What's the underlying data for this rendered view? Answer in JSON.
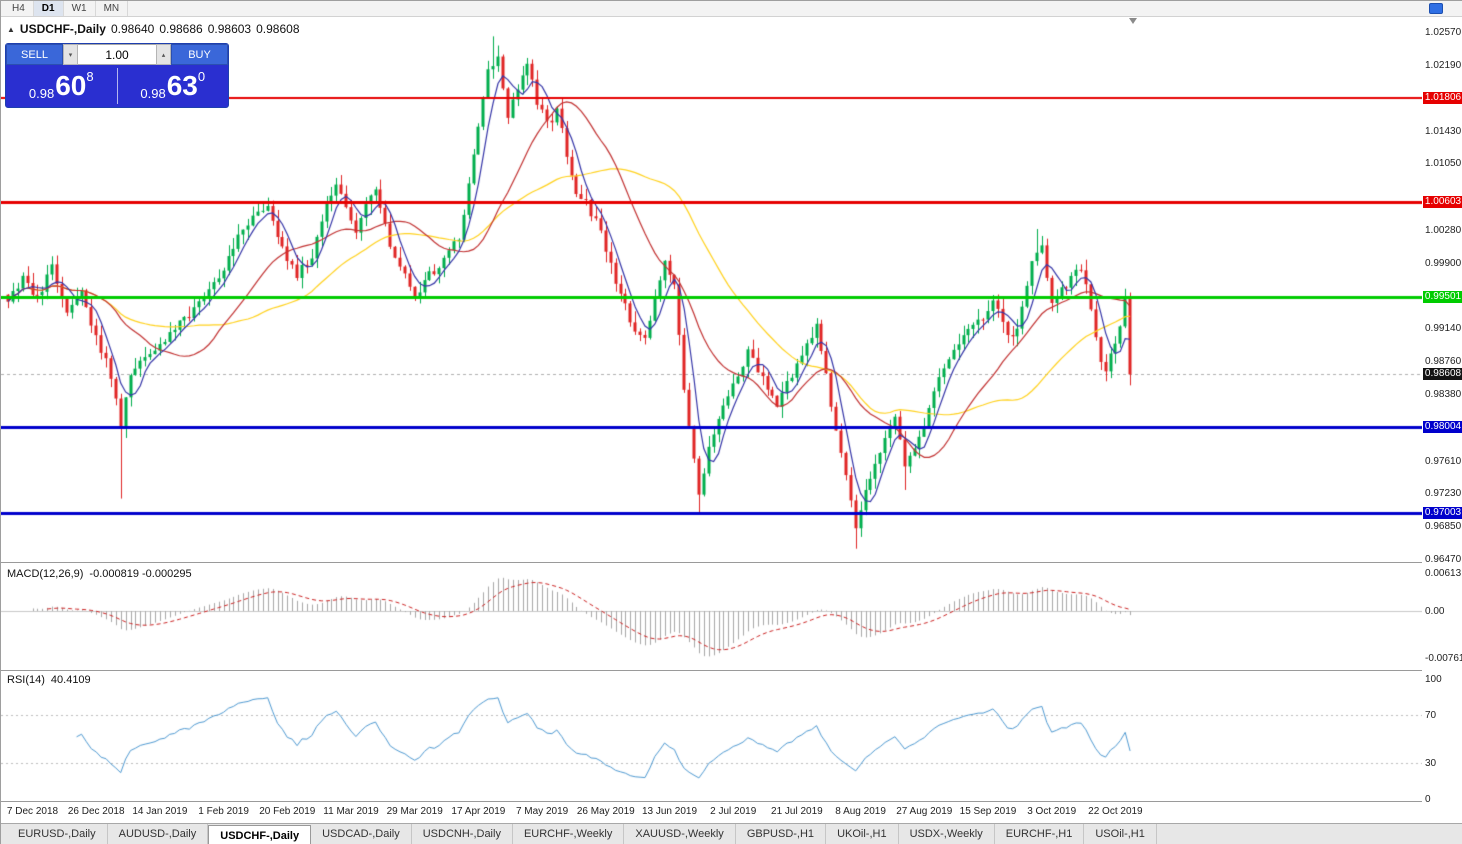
{
  "toolbar": {
    "timeframes": [
      {
        "label": "H4",
        "active": false
      },
      {
        "label": "D1",
        "active": true
      },
      {
        "label": "W1",
        "active": false
      },
      {
        "label": "MN",
        "active": false
      }
    ]
  },
  "chart": {
    "title_symbol": "USDCHF-,Daily",
    "ohlc": {
      "open": "0.98640",
      "high": "0.98686",
      "low": "0.98603",
      "close": "0.98608"
    },
    "trade_panel": {
      "sell_label": "SELL",
      "buy_label": "BUY",
      "volume": "1.00",
      "sell_base": "0.98",
      "sell_pips": "60",
      "sell_sup": "8",
      "buy_base": "0.98",
      "buy_pips": "63",
      "buy_sup": "0"
    }
  },
  "chart_data": {
    "type": "candlestick",
    "symbol": "USDCHF",
    "timeframe": "Daily",
    "y_range": {
      "top": 1.02744,
      "bottom": 0.96436
    },
    "num_candles": 230,
    "price_axis_ticks": [
      "1.02570",
      "1.02190",
      "1.01430",
      "1.01050",
      "1.00280",
      "0.99900",
      "0.99140",
      "0.98760",
      "0.98380",
      "0.97610",
      "0.97230",
      "0.96850",
      "0.96470"
    ],
    "hlines": [
      {
        "price": 1.01806,
        "label": "1.01806",
        "color": "#e60000",
        "width": 2
      },
      {
        "price": 1.00603,
        "label": "1.00603",
        "color": "#e60000",
        "width": 3
      },
      {
        "price": 0.99501,
        "label": "0.99501",
        "color": "#00cc00",
        "width": 3
      },
      {
        "price": 0.98004,
        "label": "0.98004",
        "color": "#0000cc",
        "width": 3
      },
      {
        "price": 0.97003,
        "label": "0.97003",
        "color": "#0000cc",
        "width": 3
      }
    ],
    "current_price": {
      "label": "0.98608",
      "value": 0.98608,
      "badge_color": "#141414"
    },
    "x_labels": [
      {
        "label": "7 Dec 2018",
        "index": 5
      },
      {
        "label": "26 Dec 2018",
        "index": 18
      },
      {
        "label": "14 Jan 2019",
        "index": 31
      },
      {
        "label": "1 Feb 2019",
        "index": 44
      },
      {
        "label": "20 Feb 2019",
        "index": 57
      },
      {
        "label": "11 Mar 2019",
        "index": 70
      },
      {
        "label": "29 Mar 2019",
        "index": 83
      },
      {
        "label": "17 Apr 2019",
        "index": 96
      },
      {
        "label": "7 May 2019",
        "index": 109
      },
      {
        "label": "26 May 2019",
        "index": 122
      },
      {
        "label": "13 Jun 2019",
        "index": 135
      },
      {
        "label": "2 Jul 2019",
        "index": 148
      },
      {
        "label": "21 Jul 2019",
        "index": 161
      },
      {
        "label": "8 Aug 2019",
        "index": 174
      },
      {
        "label": "27 Aug 2019",
        "index": 187
      },
      {
        "label": "15 Sep 2019",
        "index": 200
      },
      {
        "label": "3 Oct 2019",
        "index": 213
      },
      {
        "label": "22 Oct 2019",
        "index": 226
      }
    ],
    "waypoints": [
      [
        0,
        0.9945
      ],
      [
        3,
        0.9975
      ],
      [
        6,
        0.995
      ],
      [
        9,
        0.9985
      ],
      [
        12,
        0.993
      ],
      [
        15,
        0.9955
      ],
      [
        18,
        0.9905
      ],
      [
        21,
        0.986
      ],
      [
        23,
        0.98
      ],
      [
        25,
        0.986
      ],
      [
        28,
        0.9878
      ],
      [
        31,
        0.9892
      ],
      [
        34,
        0.9915
      ],
      [
        38,
        0.9935
      ],
      [
        41,
        0.9962
      ],
      [
        44,
        0.9985
      ],
      [
        47,
        1.0018
      ],
      [
        50,
        1.004
      ],
      [
        53,
        1.0052
      ],
      [
        56,
        1.0008
      ],
      [
        59,
        0.9975
      ],
      [
        62,
        1.0
      ],
      [
        65,
        1.0058
      ],
      [
        67,
        1.0085
      ],
      [
        69,
        1.0058
      ],
      [
        71,
        1.003
      ],
      [
        73,
        1.0058
      ],
      [
        75,
        1.0072
      ],
      [
        78,
        1.0012
      ],
      [
        80,
        0.999
      ],
      [
        83,
        0.9948
      ],
      [
        86,
        0.9975
      ],
      [
        89,
        0.9995
      ],
      [
        92,
        1.002
      ],
      [
        94,
        1.008
      ],
      [
        96,
        1.015
      ],
      [
        98,
        1.0212
      ],
      [
        100,
        1.0232
      ],
      [
        102,
        1.016
      ],
      [
        104,
        1.0188
      ],
      [
        106,
        1.0218
      ],
      [
        108,
        1.0175
      ],
      [
        110,
        1.015
      ],
      [
        112,
        1.0163
      ],
      [
        114,
        1.0118
      ],
      [
        116,
        1.0068
      ],
      [
        118,
        1.0058
      ],
      [
        120,
        1.004
      ],
      [
        122,
        1.0008
      ],
      [
        124,
        0.9968
      ],
      [
        126,
        0.994
      ],
      [
        128,
        0.9908
      ],
      [
        130,
        0.9898
      ],
      [
        132,
        0.995
      ],
      [
        134,
        0.9992
      ],
      [
        136,
        0.9965
      ],
      [
        138,
        0.9845
      ],
      [
        140,
        0.976
      ],
      [
        141,
        0.9722
      ],
      [
        143,
        0.9775
      ],
      [
        145,
        0.9812
      ],
      [
        147,
        0.984
      ],
      [
        149,
        0.9862
      ],
      [
        151,
        0.9888
      ],
      [
        153,
        0.9868
      ],
      [
        155,
        0.984
      ],
      [
        157,
        0.9825
      ],
      [
        159,
        0.985
      ],
      [
        161,
        0.9872
      ],
      [
        163,
        0.9895
      ],
      [
        165,
        0.992
      ],
      [
        167,
        0.9858
      ],
      [
        169,
        0.9798
      ],
      [
        171,
        0.974
      ],
      [
        173,
        0.9682
      ],
      [
        175,
        0.9722
      ],
      [
        177,
        0.9756
      ],
      [
        179,
        0.9792
      ],
      [
        181,
        0.9815
      ],
      [
        183,
        0.9752
      ],
      [
        185,
        0.9772
      ],
      [
        187,
        0.98
      ],
      [
        189,
        0.984
      ],
      [
        191,
        0.9868
      ],
      [
        193,
        0.989
      ],
      [
        195,
        0.9905
      ],
      [
        197,
        0.9918
      ],
      [
        199,
        0.9928
      ],
      [
        201,
        0.995
      ],
      [
        203,
        0.992
      ],
      [
        205,
        0.99
      ],
      [
        207,
        0.9938
      ],
      [
        209,
        0.999
      ],
      [
        211,
        1.0008
      ],
      [
        213,
        0.9942
      ],
      [
        215,
        0.9958
      ],
      [
        217,
        0.9975
      ],
      [
        219,
        0.9985
      ],
      [
        221,
        0.994
      ],
      [
        223,
        0.9878
      ],
      [
        224,
        0.9862
      ],
      [
        225,
        0.9885
      ],
      [
        227,
        0.9915
      ],
      [
        228,
        0.9952
      ],
      [
        229,
        0.98608
      ]
    ],
    "wick_events": [
      {
        "i": 23,
        "low": 0.9717
      },
      {
        "i": 99,
        "high": 1.0252
      },
      {
        "i": 141,
        "low": 0.9698
      },
      {
        "i": 173,
        "low": 0.9659
      },
      {
        "i": 183,
        "low": 0.9727
      },
      {
        "i": 210,
        "high": 1.0029
      }
    ],
    "moving_averages": [
      {
        "period": 40,
        "color": "#ffd21e"
      },
      {
        "period": 20,
        "color": "#c23232"
      },
      {
        "period": 5,
        "color": "#3535a8"
      }
    ],
    "macd": {
      "label": "MACD(12,26,9)",
      "values": "-0.000819 -0.000295",
      "fast": 12,
      "slow": 26,
      "signal": 9,
      "axis": [
        {
          "label": "0.00613",
          "value": 0.00613
        },
        {
          "label": "0.00",
          "value": 0
        },
        {
          "label": "-0.007612",
          "value": -0.007612
        }
      ]
    },
    "rsi": {
      "label": "RSI(14)",
      "value": "40.4109",
      "period": 14,
      "levels": [
        70,
        30
      ],
      "axis": [
        100,
        70,
        30,
        0
      ]
    },
    "colors": {
      "up": "#00AE4D",
      "down": "#E02525",
      "macd_hist": "#a8a8a8",
      "macd_signal": "#cc2222",
      "rsi": "#4f9ad2",
      "current_price_line": "#b0b0b0"
    }
  },
  "tabs": {
    "active": "USDCHF-,Daily",
    "items": [
      "EURUSD-,Daily",
      "AUDUSD-,Daily",
      "USDCHF-,Daily",
      "USDCAD-,Daily",
      "USDCNH-,Daily",
      "EURCHF-,Weekly",
      "XAUUSD-,Weekly",
      "GBPUSD-,H1",
      "UKOil-,H1",
      "USDX-,Weekly",
      "EURCHF-,H1",
      "USOil-,H1"
    ]
  }
}
